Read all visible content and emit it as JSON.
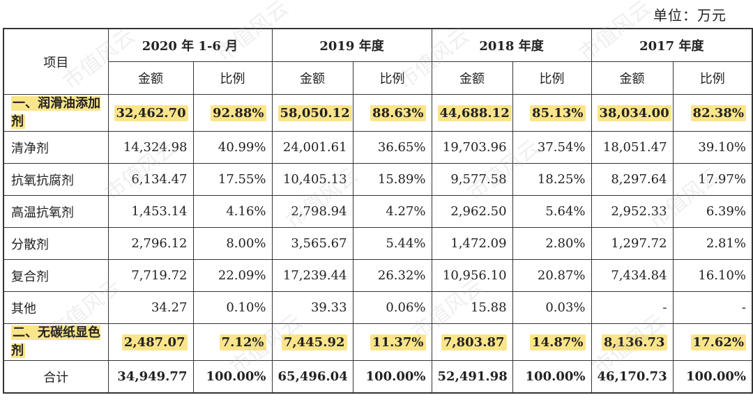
{
  "unit": "单位：万元",
  "header": {
    "item": "项目",
    "periods": [
      "2020 年 1-6 月",
      "2019 年度",
      "2018 年度",
      "2017 年度"
    ],
    "amount": "金额",
    "ratio": "比例"
  },
  "rows": [
    {
      "label": "一、润滑油添加剂",
      "cells": [
        "32,462.70",
        "92.88%",
        "58,050.12",
        "88.63%",
        "44,688.12",
        "85.13%",
        "38,034.00",
        "82.38%"
      ],
      "highlight": true
    },
    {
      "label": "清净剂",
      "cells": [
        "14,324.98",
        "40.99%",
        "24,001.61",
        "36.65%",
        "19,703.96",
        "37.54%",
        "18,051.47",
        "39.10%"
      ]
    },
    {
      "label": "抗氧抗腐剂",
      "cells": [
        "6,134.47",
        "17.55%",
        "10,405.13",
        "15.89%",
        "9,577.58",
        "18.25%",
        "8,297.64",
        "17.97%"
      ]
    },
    {
      "label": "高温抗氧剂",
      "cells": [
        "1,453.14",
        "4.16%",
        "2,798.94",
        "4.27%",
        "2,962.50",
        "5.64%",
        "2,952.33",
        "6.39%"
      ]
    },
    {
      "label": "分散剂",
      "cells": [
        "2,796.12",
        "8.00%",
        "3,565.67",
        "5.44%",
        "1,472.09",
        "2.80%",
        "1,297.72",
        "2.81%"
      ]
    },
    {
      "label": "复合剂",
      "cells": [
        "7,719.72",
        "22.09%",
        "17,239.44",
        "26.32%",
        "10,956.10",
        "20.87%",
        "7,434.84",
        "16.10%"
      ]
    },
    {
      "label": "其他",
      "cells": [
        "34.27",
        "0.10%",
        "39.33",
        "0.06%",
        "15.88",
        "0.03%",
        "-",
        "-"
      ]
    },
    {
      "label": "二、无碳纸显色剂",
      "cells": [
        "2,487.07",
        "7.12%",
        "7,445.92",
        "11.37%",
        "7,803.87",
        "14.87%",
        "8,136.73",
        "17.62%"
      ],
      "highlight": true
    },
    {
      "label": "合计",
      "cells": [
        "34,949.77",
        "100.00%",
        "65,496.04",
        "100.00%",
        "52,491.98",
        "100.00%",
        "46,170.73",
        "100.00%"
      ],
      "total": true
    }
  ],
  "watermark": "市值风云",
  "colors": {
    "highlight": "#fbe58a",
    "border": "#333333"
  }
}
